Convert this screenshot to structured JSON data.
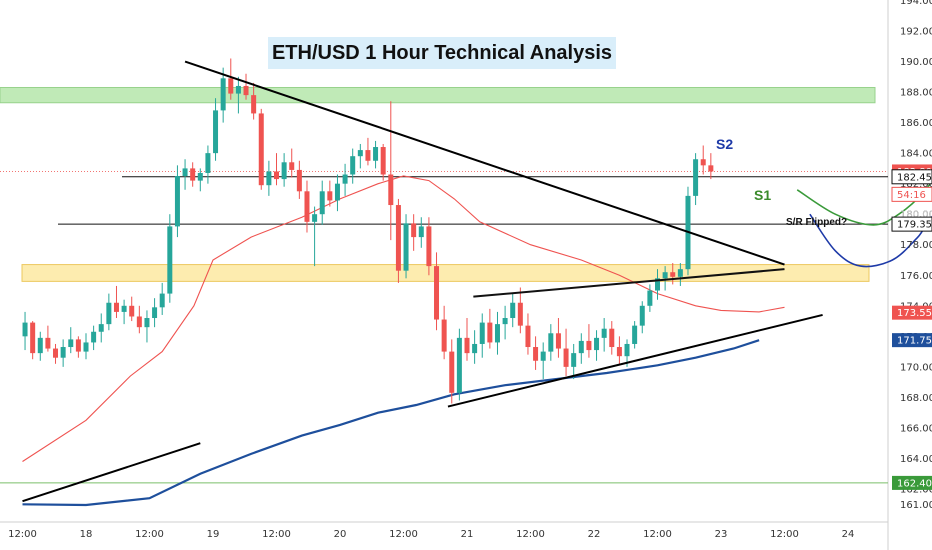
{
  "title": "ETH/USD 1 Hour Technical Analysis",
  "annotations": {
    "s2": "S2",
    "s1": "S1",
    "sr_flipped": "S/R Flipped?"
  },
  "colors": {
    "up": "#26a69a",
    "down": "#ef5350",
    "ema_fast": "#ef5350",
    "ema_slow": "#1e4f9c",
    "resistance_zone": "#a6e29a",
    "support_zone": "#fde9a2",
    "path_s1": "#3a9a3a",
    "path_s2": "#1e3aa8"
  },
  "chart_data": {
    "type": "candlestick",
    "price_axis": {
      "min": 161,
      "max": 194,
      "ticks": [
        "161.00",
        "162.00",
        "164.00",
        "166.00",
        "168.00",
        "170.00",
        "172.00",
        "174.00",
        "176.00",
        "178.00",
        "180.00",
        "182.00",
        "184.00",
        "186.00",
        "188.00",
        "190.00",
        "192.00",
        "194.00"
      ]
    },
    "time_axis": {
      "ticks": [
        "12:00",
        "18",
        "12:00",
        "19",
        "12:00",
        "20",
        "12:00",
        "21",
        "12:00",
        "22",
        "12:00",
        "23",
        "12:00",
        "24"
      ]
    },
    "price_badges": [
      {
        "text": "182.80",
        "color": "#ef5350",
        "style": "filled"
      },
      {
        "text": "54:16",
        "color": "#ef5350",
        "style": "outline"
      },
      {
        "text": "182.45",
        "color": "#111111",
        "style": "outline"
      },
      {
        "text": "180.00",
        "color": "#cccccc",
        "style": "plain"
      },
      {
        "text": "179.35",
        "color": "#111111",
        "style": "outline"
      },
      {
        "text": "173.55",
        "color": "#ef5350",
        "style": "filled"
      },
      {
        "text": "171.75",
        "color": "#1e4f9c",
        "style": "filled"
      },
      {
        "text": "162.40",
        "color": "#3a9a3a",
        "style": "filled"
      }
    ],
    "zones": [
      {
        "name": "resistance",
        "low": 187.3,
        "high": 188.3
      },
      {
        "name": "support",
        "low": 175.6,
        "high": 176.7
      }
    ],
    "horizontal_levels": [
      {
        "name": "182.45",
        "value": 182.45
      },
      {
        "name": "179.35",
        "value": 179.35
      },
      {
        "name": "182.80",
        "value": 182.8
      },
      {
        "name": "162.40",
        "value": 162.4
      }
    ],
    "trendlines": [
      {
        "name": "descending",
        "from": {
          "day": 0.78,
          "price": 190.0
        },
        "to": {
          "day": 5.5,
          "price": 176.7
        }
      },
      {
        "name": "rising-support",
        "from": {
          "day": 2.85,
          "price": 167.4
        },
        "to": {
          "day": 5.8,
          "price": 173.4
        }
      },
      {
        "name": "rising-resistance",
        "from": {
          "day": 3.05,
          "price": 174.6
        },
        "to": {
          "day": 5.5,
          "price": 176.4
        }
      },
      {
        "name": "left-trend",
        "from": {
          "day": -0.5,
          "price": 161.2
        },
        "to": {
          "day": 0.9,
          "price": 165.0
        }
      }
    ],
    "ema_fast": [
      [
        -0.5,
        163.8
      ],
      [
        0.0,
        166.5
      ],
      [
        0.35,
        169.4
      ],
      [
        0.6,
        171.0
      ],
      [
        0.85,
        174.0
      ],
      [
        1.0,
        177.0
      ],
      [
        1.3,
        178.5
      ],
      [
        1.7,
        179.8
      ],
      [
        2.0,
        181.0
      ],
      [
        2.3,
        182.0
      ],
      [
        2.5,
        182.5
      ],
      [
        2.7,
        182.2
      ],
      [
        2.9,
        181.0
      ],
      [
        3.1,
        179.5
      ],
      [
        3.5,
        178.0
      ],
      [
        3.9,
        177.0
      ],
      [
        4.2,
        176.0
      ],
      [
        4.5,
        174.8
      ],
      [
        4.8,
        174.0
      ],
      [
        5.0,
        173.7
      ],
      [
        5.3,
        173.6
      ],
      [
        5.5,
        173.9
      ]
    ],
    "ema_slow": [
      [
        -0.5,
        161.0
      ],
      [
        0.0,
        160.95
      ],
      [
        0.5,
        161.4
      ],
      [
        0.9,
        163.0
      ],
      [
        1.3,
        164.3
      ],
      [
        1.7,
        165.5
      ],
      [
        2.0,
        166.2
      ],
      [
        2.3,
        167.0
      ],
      [
        2.6,
        167.5
      ],
      [
        2.9,
        168.2
      ],
      [
        3.3,
        168.8
      ],
      [
        3.7,
        169.2
      ],
      [
        4.1,
        169.6
      ],
      [
        4.5,
        170.1
      ],
      [
        4.8,
        170.6
      ],
      [
        5.1,
        171.2
      ],
      [
        5.3,
        171.75
      ]
    ],
    "projected_paths": [
      {
        "name": "S2-path",
        "points": [
          [
            5.6,
            181.6
          ],
          [
            5.9,
            180.0
          ],
          [
            6.2,
            179.3
          ],
          [
            6.4,
            180.0
          ],
          [
            6.6,
            181.5
          ],
          [
            6.8,
            184.0
          ],
          [
            7.0,
            188.2
          ]
        ]
      },
      {
        "name": "S1-path",
        "points": [
          [
            5.7,
            180.0
          ],
          [
            5.9,
            177.6
          ],
          [
            6.1,
            176.6
          ],
          [
            6.35,
            177.0
          ],
          [
            6.55,
            178.5
          ],
          [
            6.7,
            180.0
          ],
          [
            7.0,
            179.5
          ],
          [
            7.2,
            181.0
          ],
          [
            7.45,
            183.0
          ],
          [
            7.65,
            185.0
          ],
          [
            7.8,
            188.0
          ]
        ]
      }
    ],
    "candles": [
      [
        -0.48,
        172.0,
        173.6,
        171.1,
        172.9
      ],
      [
        -0.42,
        172.9,
        173.0,
        170.5,
        170.9
      ],
      [
        -0.36,
        170.9,
        172.3,
        170.4,
        171.9
      ],
      [
        -0.3,
        171.9,
        172.7,
        171.0,
        171.2
      ],
      [
        -0.24,
        171.2,
        171.5,
        170.2,
        170.6
      ],
      [
        -0.18,
        170.6,
        171.8,
        170.0,
        171.3
      ],
      [
        -0.12,
        171.3,
        172.6,
        170.9,
        171.8
      ],
      [
        -0.06,
        171.8,
        172.0,
        170.6,
        171.0
      ],
      [
        0.0,
        171.0,
        172.2,
        170.5,
        171.6
      ],
      [
        0.06,
        171.6,
        172.7,
        171.1,
        172.3
      ],
      [
        0.12,
        172.3,
        173.5,
        171.6,
        172.8
      ],
      [
        0.18,
        172.8,
        174.8,
        172.4,
        174.2
      ],
      [
        0.24,
        174.2,
        175.3,
        173.2,
        173.6
      ],
      [
        0.3,
        173.6,
        174.4,
        172.8,
        174.0
      ],
      [
        0.36,
        174.0,
        174.6,
        173.0,
        173.3
      ],
      [
        0.42,
        173.3,
        174.0,
        172.2,
        172.6
      ],
      [
        0.48,
        172.6,
        173.7,
        171.6,
        173.2
      ],
      [
        0.54,
        173.2,
        174.5,
        172.6,
        173.9
      ],
      [
        0.6,
        173.9,
        175.5,
        173.4,
        174.8
      ],
      [
        0.66,
        174.8,
        180.0,
        174.2,
        179.2
      ],
      [
        0.72,
        179.2,
        183.2,
        178.5,
        182.5
      ],
      [
        0.78,
        182.5,
        183.6,
        181.6,
        183.0
      ],
      [
        0.84,
        183.0,
        183.4,
        181.8,
        182.2
      ],
      [
        0.9,
        182.2,
        183.0,
        181.5,
        182.7
      ],
      [
        0.96,
        182.7,
        184.5,
        182.0,
        184.0
      ],
      [
        1.02,
        184.0,
        187.6,
        183.5,
        186.8
      ],
      [
        1.08,
        186.8,
        189.6,
        186.0,
        188.9
      ],
      [
        1.14,
        188.9,
        190.2,
        187.5,
        187.9
      ],
      [
        1.2,
        187.9,
        189.0,
        186.6,
        188.4
      ],
      [
        1.26,
        188.4,
        189.2,
        187.5,
        187.8
      ],
      [
        1.32,
        187.8,
        188.6,
        186.2,
        186.6
      ],
      [
        1.38,
        186.6,
        186.9,
        181.6,
        181.9
      ],
      [
        1.44,
        181.9,
        183.5,
        181.2,
        182.8
      ],
      [
        1.5,
        182.8,
        184.0,
        181.9,
        182.3
      ],
      [
        1.56,
        182.3,
        184.0,
        181.8,
        183.4
      ],
      [
        1.62,
        183.4,
        184.3,
        182.4,
        182.9
      ],
      [
        1.68,
        182.9,
        183.5,
        181.0,
        181.5
      ],
      [
        1.74,
        181.5,
        182.2,
        178.8,
        179.5
      ],
      [
        1.8,
        179.5,
        180.5,
        176.6,
        180.0
      ],
      [
        1.86,
        180.0,
        182.2,
        179.3,
        181.5
      ],
      [
        1.92,
        181.5,
        182.2,
        180.5,
        180.9
      ],
      [
        1.98,
        180.9,
        182.6,
        180.2,
        182.0
      ],
      [
        2.04,
        182.0,
        183.3,
        181.2,
        182.6
      ],
      [
        2.1,
        182.6,
        184.3,
        182.0,
        183.8
      ],
      [
        2.16,
        183.8,
        184.6,
        183.0,
        184.2
      ],
      [
        2.22,
        184.2,
        185.0,
        183.2,
        183.5
      ],
      [
        2.28,
        183.5,
        184.8,
        183.0,
        184.4
      ],
      [
        2.34,
        184.4,
        184.6,
        182.2,
        182.6
      ],
      [
        2.4,
        182.6,
        187.4,
        178.3,
        180.6
      ],
      [
        2.46,
        180.6,
        181.0,
        175.5,
        176.3
      ],
      [
        2.52,
        176.3,
        180.0,
        175.8,
        179.4
      ],
      [
        2.58,
        179.4,
        180.0,
        177.6,
        178.5
      ],
      [
        2.64,
        178.5,
        179.8,
        177.8,
        179.2
      ],
      [
        2.7,
        179.2,
        179.8,
        176.0,
        176.6
      ],
      [
        2.76,
        176.6,
        177.5,
        172.4,
        173.1
      ],
      [
        2.82,
        173.1,
        174.0,
        170.5,
        171.0
      ],
      [
        2.88,
        171.0,
        171.8,
        167.6,
        168.3
      ],
      [
        2.94,
        168.3,
        172.5,
        167.8,
        171.9
      ],
      [
        3.0,
        171.9,
        173.2,
        170.4,
        170.9
      ],
      [
        3.06,
        170.9,
        172.4,
        170.2,
        171.5
      ],
      [
        3.12,
        171.5,
        173.5,
        170.6,
        172.9
      ],
      [
        3.18,
        172.9,
        173.8,
        171.2,
        171.6
      ],
      [
        3.24,
        171.6,
        173.6,
        170.8,
        172.8
      ],
      [
        3.3,
        172.8,
        174.0,
        171.8,
        173.2
      ],
      [
        3.36,
        173.2,
        174.8,
        172.6,
        174.2
      ],
      [
        3.42,
        174.2,
        175.2,
        172.2,
        172.7
      ],
      [
        3.48,
        172.7,
        173.5,
        170.8,
        171.3
      ],
      [
        3.54,
        171.3,
        172.0,
        169.8,
        170.4
      ],
      [
        3.6,
        170.4,
        171.6,
        169.2,
        171.0
      ],
      [
        3.66,
        171.0,
        172.8,
        170.4,
        172.2
      ],
      [
        3.72,
        172.2,
        173.2,
        170.6,
        171.2
      ],
      [
        3.78,
        171.2,
        172.5,
        169.4,
        170.0
      ],
      [
        3.84,
        170.0,
        171.5,
        169.2,
        170.9
      ],
      [
        3.9,
        170.9,
        172.2,
        170.2,
        171.7
      ],
      [
        3.96,
        171.7,
        172.8,
        170.6,
        171.1
      ],
      [
        4.02,
        171.1,
        172.4,
        170.4,
        171.9
      ],
      [
        4.08,
        171.9,
        173.2,
        171.0,
        172.5
      ],
      [
        4.14,
        172.5,
        173.0,
        170.8,
        171.3
      ],
      [
        4.2,
        171.3,
        172.0,
        170.2,
        170.7
      ],
      [
        4.26,
        170.7,
        171.8,
        170.0,
        171.5
      ],
      [
        4.32,
        171.5,
        173.0,
        171.2,
        172.7
      ],
      [
        4.38,
        172.7,
        174.3,
        172.2,
        174.0
      ],
      [
        4.44,
        174.0,
        175.4,
        173.6,
        175.0
      ],
      [
        4.5,
        175.0,
        176.4,
        174.4,
        175.8
      ],
      [
        4.56,
        175.8,
        176.6,
        175.0,
        176.2
      ],
      [
        4.62,
        176.2,
        176.8,
        175.4,
        175.9
      ],
      [
        4.68,
        175.9,
        176.8,
        175.3,
        176.4
      ],
      [
        4.74,
        176.4,
        181.8,
        176.0,
        181.2
      ],
      [
        4.8,
        181.2,
        184.0,
        180.6,
        183.6
      ],
      [
        4.86,
        183.6,
        184.5,
        182.6,
        183.2
      ],
      [
        4.92,
        183.2,
        184.0,
        182.3,
        182.8
      ]
    ]
  }
}
